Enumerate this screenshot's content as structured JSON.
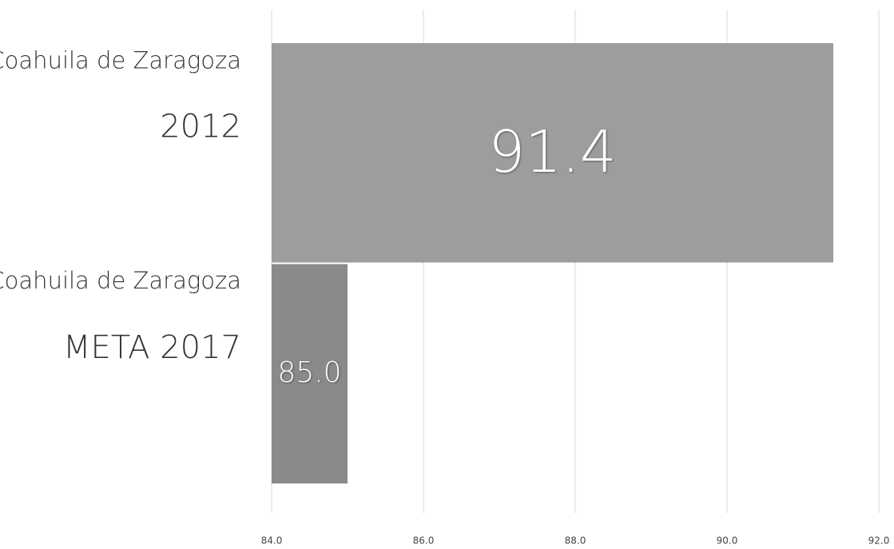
{
  "chart_data": {
    "type": "bar",
    "orientation": "horizontal",
    "categories": [
      [
        "Coahuila de Zaragoza",
        "2012"
      ],
      [
        "Coahuila de Zaragoza",
        "META 2017"
      ]
    ],
    "values": [
      91.4,
      85.0
    ],
    "value_labels": [
      "91.4",
      "85.0"
    ],
    "colors": [
      "#9d9d9d",
      "#8a8a8a"
    ],
    "xlim": [
      84,
      92
    ],
    "xticks": [
      {
        "value": 84,
        "label": "84.0"
      },
      {
        "value": 86,
        "label": "86.0"
      },
      {
        "value": 88,
        "label": "88.0"
      },
      {
        "value": 90,
        "label": "90.0"
      },
      {
        "value": 92,
        "label": "92.0"
      }
    ],
    "grid": true
  }
}
